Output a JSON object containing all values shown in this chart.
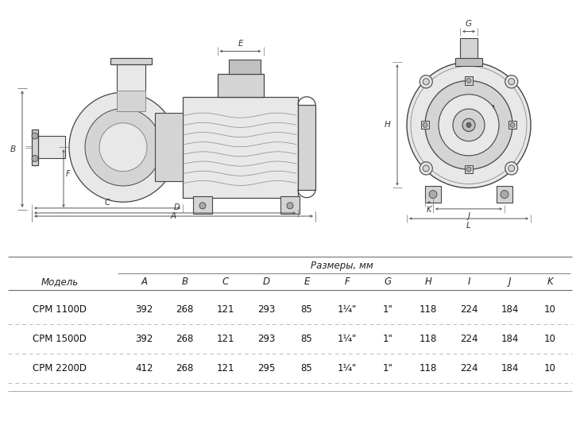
{
  "bg_color": "#ffffff",
  "table_header_top": "Размеры, мм",
  "col_model": "Модель",
  "columns": [
    "A",
    "B",
    "C",
    "D",
    "E",
    "F",
    "G",
    "H",
    "I",
    "J",
    "K"
  ],
  "rows": [
    {
      "model": "CPM 1100D",
      "values": [
        "392",
        "268",
        "121",
        "293",
        "85",
        "1¼\"",
        "1\"",
        "118",
        "224",
        "184",
        "10"
      ]
    },
    {
      "model": "CPM 1500D",
      "values": [
        "392",
        "268",
        "121",
        "293",
        "85",
        "1¼\"",
        "1\"",
        "118",
        "224",
        "184",
        "10"
      ]
    },
    {
      "model": "CPM 2200D",
      "values": [
        "412",
        "268",
        "121",
        "295",
        "85",
        "1¼\"",
        "1\"",
        "118",
        "224",
        "184",
        "10"
      ]
    }
  ],
  "line_color": "#444444",
  "dim_color": "#333333",
  "fill_light": "#e8e8e8",
  "fill_mid": "#d4d4d4",
  "fill_dark": "#c0c0c0"
}
